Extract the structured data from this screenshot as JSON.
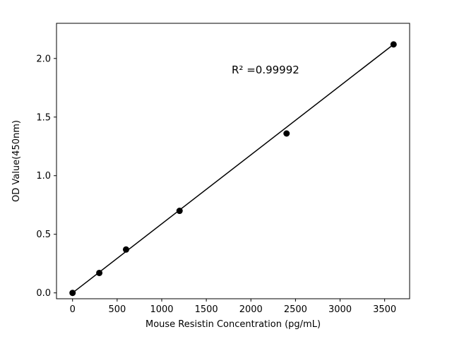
{
  "chart_data": {
    "type": "scatter",
    "title": "",
    "xlabel": "Mouse Resistin Concentration (pg/mL)",
    "ylabel": "OD Value(450nm)",
    "annotation": "R² =0.99992",
    "x": [
      0,
      300,
      600,
      1200,
      2400,
      3600
    ],
    "y": [
      0.0,
      0.17,
      0.37,
      0.7,
      1.36,
      2.12
    ],
    "fit_line": {
      "x0": 0,
      "y0": 0.0,
      "x1": 3600,
      "y1": 2.12
    },
    "xlim": [
      -180,
      3780
    ],
    "ylim": [
      -0.05,
      2.3
    ],
    "xticks": [
      "0",
      "500",
      "1000",
      "1500",
      "2000",
      "2500",
      "3000",
      "3500"
    ],
    "yticks": [
      "0.0",
      "0.5",
      "1.0",
      "1.5",
      "2.0"
    ],
    "grid": false,
    "legend": null,
    "marker_color": "#000000",
    "line_color": "#000000",
    "axis_color": "#000000",
    "background_color": "#ffffff"
  }
}
